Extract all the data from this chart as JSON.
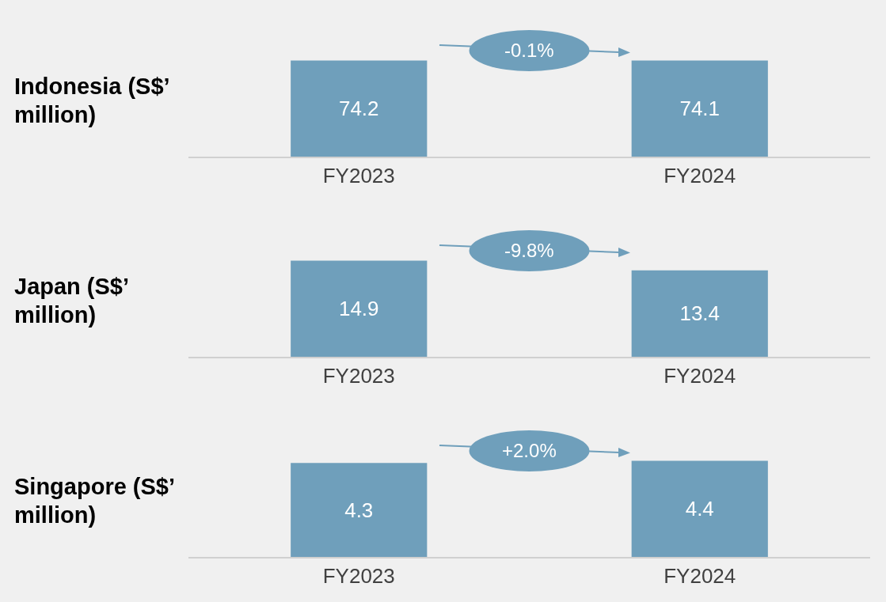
{
  "chart_data": [
    {
      "type": "bar",
      "title": "Indonesia (S$’ million)",
      "categories": [
        "FY2023",
        "FY2024"
      ],
      "values": [
        74.2,
        74.1
      ],
      "color": "#6f9fbb",
      "data_labels": true,
      "annotations": [
        "-0.1%"
      ]
    },
    {
      "type": "bar",
      "title": "Japan (S$’ million)",
      "categories": [
        "FY2023",
        "FY2024"
      ],
      "values": [
        14.9,
        13.4
      ],
      "color": "#6f9fbb",
      "data_labels": true,
      "annotations": [
        "-9.8%"
      ]
    },
    {
      "type": "bar",
      "title": "Singapore (S$’ million)",
      "categories": [
        "FY2023",
        "FY2024"
      ],
      "values": [
        4.3,
        4.4
      ],
      "color": "#6f9fbb",
      "data_labels": true,
      "annotations": [
        "+2.0%"
      ]
    }
  ]
}
